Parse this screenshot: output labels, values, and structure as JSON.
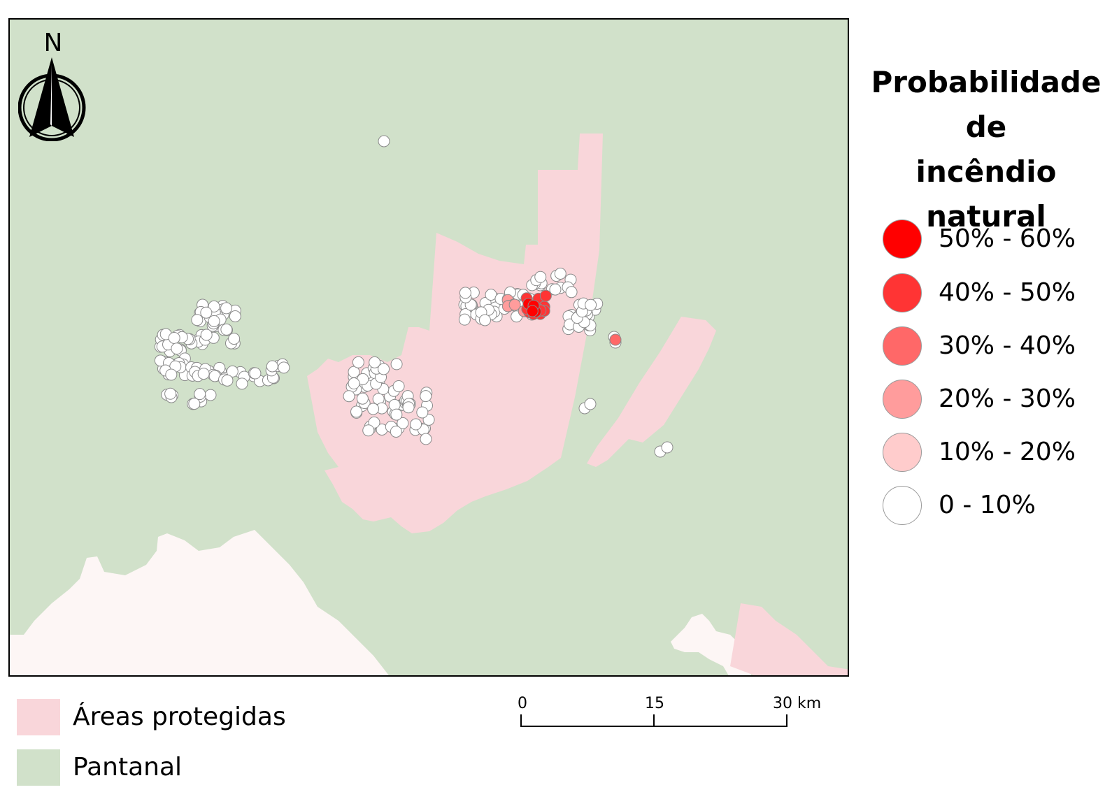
{
  "legend": {
    "title_lines": [
      "Probabilidade",
      "de",
      "incêndio natural"
    ],
    "classes": [
      {
        "label": "50% - 60%",
        "color": "#ff0000"
      },
      {
        "label": "40% - 50%",
        "color": "#ff3434"
      },
      {
        "label": "30% - 40%",
        "color": "#ff6868"
      },
      {
        "label": "20% - 30%",
        "color": "#ff9c9c"
      },
      {
        "label": "10% - 20%",
        "color": "#ffcccc"
      },
      {
        "label": "0 - 10%",
        "color": "#ffffff"
      }
    ]
  },
  "layers": [
    {
      "label": "Áreas protegidas",
      "color": "#f9d6da"
    },
    {
      "label": "Pantanal",
      "color": "#d1e1ca"
    }
  ],
  "north_arrow": {
    "label": "N"
  },
  "scale_bar": {
    "ticks": [
      "0",
      "15",
      "30 km"
    ]
  },
  "colors": {
    "background_outside": "#fdf6f5",
    "point_stroke": "#8a8a8a"
  }
}
